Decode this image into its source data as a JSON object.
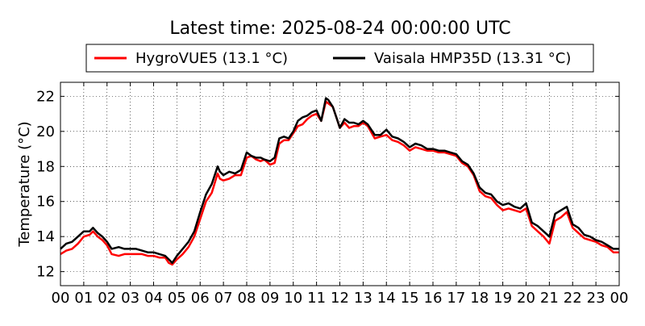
{
  "chart_data": {
    "type": "line",
    "title": "Latest time: 2025-08-24 00:00:00 UTC",
    "xlabel": "",
    "ylabel": "Temperature (°C)",
    "xlim": [
      0,
      24
    ],
    "ylim": [
      11.2,
      22.8
    ],
    "x_ticks": [
      0,
      1,
      2,
      3,
      4,
      5,
      6,
      7,
      8,
      9,
      10,
      11,
      12,
      13,
      14,
      15,
      16,
      17,
      18,
      19,
      20,
      21,
      22,
      23,
      24
    ],
    "x_tick_labels": [
      "00",
      "01",
      "02",
      "03",
      "04",
      "05",
      "06",
      "07",
      "08",
      "09",
      "10",
      "11",
      "12",
      "13",
      "14",
      "15",
      "16",
      "17",
      "18",
      "19",
      "20",
      "21",
      "22",
      "23",
      "00"
    ],
    "y_ticks": [
      12,
      14,
      16,
      18,
      20,
      22
    ],
    "grid": true,
    "legend_position": "top",
    "series": [
      {
        "name": "HygroVUE5 (13.1 °C)",
        "color": "#ff0000",
        "x": [
          0,
          0.25,
          0.5,
          0.75,
          1,
          1.25,
          1.4,
          1.6,
          1.8,
          2,
          2.2,
          2.5,
          2.75,
          3,
          3.25,
          3.5,
          3.75,
          4,
          4.25,
          4.5,
          4.65,
          4.8,
          5,
          5.25,
          5.5,
          5.75,
          6,
          6.25,
          6.5,
          6.75,
          6.85,
          7,
          7.25,
          7.5,
          7.75,
          8,
          8.2,
          8.4,
          8.6,
          8.75,
          9,
          9.2,
          9.4,
          9.6,
          9.8,
          10,
          10.2,
          10.4,
          10.6,
          10.8,
          11,
          11.2,
          11.4,
          11.5,
          11.7,
          11.85,
          12,
          12.2,
          12.4,
          12.6,
          12.8,
          13,
          13.2,
          13.5,
          13.75,
          14,
          14.25,
          14.5,
          14.75,
          15,
          15.25,
          15.5,
          15.75,
          16,
          16.25,
          16.5,
          16.75,
          17,
          17.25,
          17.5,
          17.75,
          18,
          18.25,
          18.5,
          18.75,
          19,
          19.25,
          19.5,
          19.75,
          20,
          20.25,
          20.5,
          20.75,
          21,
          21.25,
          21.5,
          21.75,
          22,
          22.25,
          22.5,
          22.75,
          23,
          23.25,
          23.5,
          23.75,
          24
        ],
        "y": [
          13.0,
          13.2,
          13.3,
          13.6,
          14.0,
          14.1,
          14.3,
          14.0,
          13.8,
          13.5,
          13.0,
          12.9,
          13.0,
          13.0,
          13.0,
          13.0,
          12.9,
          12.9,
          12.8,
          12.8,
          12.5,
          12.4,
          12.7,
          13.0,
          13.4,
          14.0,
          15.0,
          16.0,
          16.5,
          17.6,
          17.3,
          17.2,
          17.3,
          17.5,
          17.5,
          18.5,
          18.6,
          18.4,
          18.3,
          18.4,
          18.1,
          18.2,
          19.3,
          19.5,
          19.5,
          19.9,
          20.3,
          20.4,
          20.7,
          20.9,
          21.0,
          20.6,
          21.7,
          21.6,
          21.4,
          20.8,
          20.2,
          20.5,
          20.2,
          20.3,
          20.3,
          20.5,
          20.3,
          19.6,
          19.7,
          19.8,
          19.5,
          19.4,
          19.2,
          18.9,
          19.1,
          19.0,
          18.9,
          18.9,
          18.8,
          18.8,
          18.7,
          18.6,
          18.2,
          18.0,
          17.5,
          16.6,
          16.3,
          16.2,
          15.8,
          15.5,
          15.6,
          15.5,
          15.4,
          15.6,
          14.6,
          14.3,
          14.0,
          13.6,
          14.9,
          15.1,
          15.4,
          14.5,
          14.2,
          13.9,
          13.8,
          13.7,
          13.5,
          13.4,
          13.1,
          13.1
        ]
      },
      {
        "name": "Vaisala HMP35D (13.31 °C)",
        "color": "#000000",
        "x": [
          0,
          0.25,
          0.5,
          0.75,
          1,
          1.25,
          1.4,
          1.6,
          1.8,
          2,
          2.2,
          2.5,
          2.75,
          3,
          3.25,
          3.5,
          3.75,
          4,
          4.25,
          4.5,
          4.65,
          4.8,
          5,
          5.25,
          5.5,
          5.75,
          6,
          6.25,
          6.5,
          6.75,
          6.85,
          7,
          7.25,
          7.5,
          7.75,
          8,
          8.2,
          8.4,
          8.6,
          8.75,
          9,
          9.2,
          9.4,
          9.6,
          9.8,
          10,
          10.2,
          10.4,
          10.6,
          10.8,
          11,
          11.2,
          11.4,
          11.5,
          11.7,
          11.85,
          12,
          12.2,
          12.4,
          12.6,
          12.8,
          13,
          13.2,
          13.5,
          13.75,
          14,
          14.25,
          14.5,
          14.75,
          15,
          15.25,
          15.5,
          15.75,
          16,
          16.25,
          16.5,
          16.75,
          17,
          17.25,
          17.5,
          17.75,
          18,
          18.25,
          18.5,
          18.75,
          19,
          19.25,
          19.5,
          19.75,
          20,
          20.25,
          20.5,
          20.75,
          21,
          21.25,
          21.5,
          21.75,
          22,
          22.25,
          22.5,
          22.75,
          23,
          23.25,
          23.5,
          23.75,
          24
        ],
        "y": [
          13.3,
          13.6,
          13.7,
          14.0,
          14.3,
          14.3,
          14.5,
          14.2,
          14.0,
          13.7,
          13.3,
          13.4,
          13.3,
          13.3,
          13.3,
          13.2,
          13.1,
          13.1,
          13.0,
          12.9,
          12.7,
          12.5,
          12.9,
          13.3,
          13.7,
          14.3,
          15.4,
          16.4,
          17.0,
          18.0,
          17.7,
          17.5,
          17.7,
          17.6,
          17.8,
          18.8,
          18.6,
          18.5,
          18.5,
          18.4,
          18.3,
          18.5,
          19.6,
          19.7,
          19.6,
          20.0,
          20.6,
          20.8,
          20.9,
          21.1,
          21.2,
          20.6,
          21.9,
          21.8,
          21.4,
          20.8,
          20.2,
          20.7,
          20.5,
          20.5,
          20.4,
          20.6,
          20.4,
          19.8,
          19.8,
          20.1,
          19.7,
          19.6,
          19.4,
          19.1,
          19.3,
          19.2,
          19.0,
          19.0,
          18.9,
          18.9,
          18.8,
          18.7,
          18.3,
          18.1,
          17.6,
          16.8,
          16.5,
          16.4,
          16.0,
          15.8,
          15.9,
          15.7,
          15.6,
          15.9,
          14.8,
          14.6,
          14.3,
          14.0,
          15.3,
          15.5,
          15.7,
          14.7,
          14.5,
          14.1,
          14.0,
          13.8,
          13.7,
          13.5,
          13.3,
          13.3
        ]
      }
    ]
  }
}
